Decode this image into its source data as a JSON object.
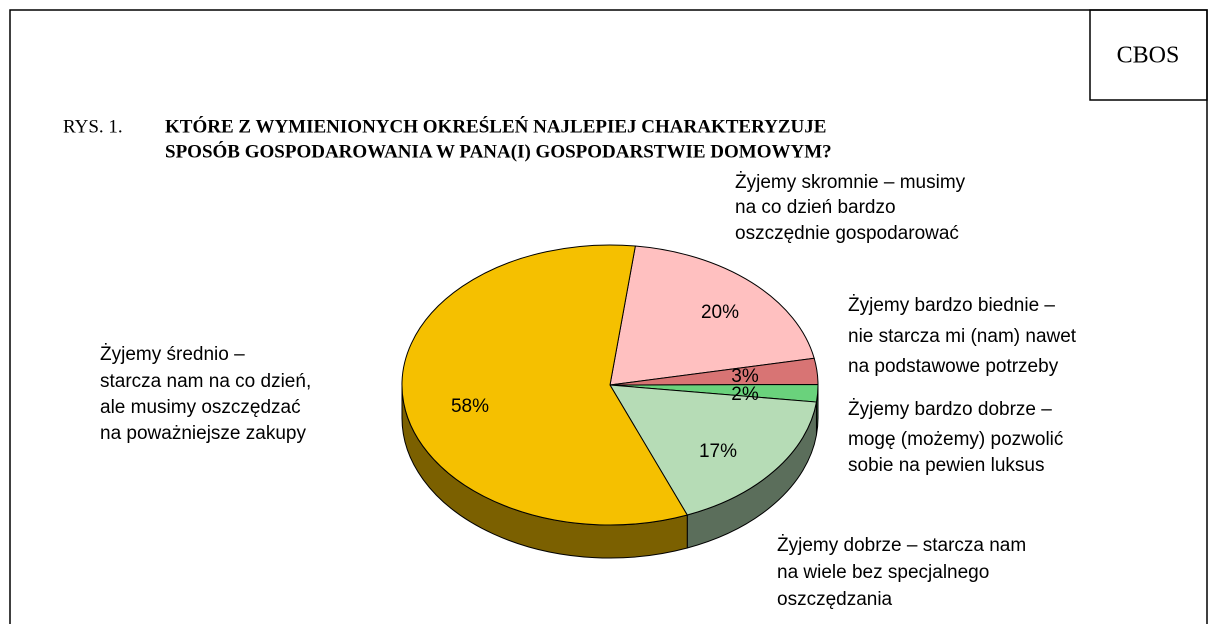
{
  "source": "CBOS",
  "chart_data": {
    "type": "pie",
    "figure_label": "RYS. 1.",
    "title": [
      "KTÓRE Z WYMIENIONYCH OKREŚLEŃ NAJLEPIEJ CHARAKTERYZUJE",
      "SPOSÓB GOSPODAROWANIA W PANA(I) GOSPODARSTWIE DOMOWYM?"
    ],
    "categories": [
      [
        "Żyjemy skromnie – musimy",
        "na co dzień bardzo",
        "oszczędnie gospodarować"
      ],
      [
        "Żyjemy bardzo biednie –",
        "nie starcza mi (nam) nawet",
        "na podstawowe potrzeby"
      ],
      [
        "Żyjemy bardzo dobrze –",
        "mogę (możemy) pozwolić",
        "sobie na pewien luksus"
      ],
      [
        "Żyjemy dobrze – starcza nam",
        "na wiele bez specjalnego",
        "oszczędzania"
      ],
      [
        "Żyjemy średnio –",
        "starcza nam na co dzień,",
        "ale musimy oszczędzać",
        "na poważniejsze zakupy"
      ]
    ],
    "values": [
      20,
      3,
      2,
      17,
      58
    ],
    "value_labels": [
      "20%",
      "3%",
      "2%",
      "17%",
      "58%"
    ],
    "colors": [
      "#ffc0c0",
      "#d87474",
      "#6ad27c",
      "#b6dcb6",
      "#f5c000"
    ]
  }
}
